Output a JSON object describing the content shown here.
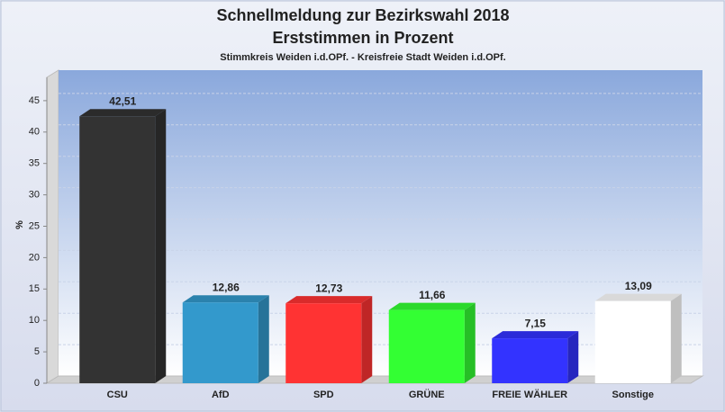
{
  "chart_data": {
    "type": "bar",
    "title": "Schnellmeldung zur Bezirkswahl 2018",
    "subtitle": "Erststimmen in Prozent",
    "note": "Stimmkreis Weiden i.d.OPf. - Kreisfreie Stadt Weiden i.d.OPf.",
    "y_label": "%",
    "categories": [
      "CSU",
      "AfD",
      "SPD",
      "GRÜNE",
      "FREIE WÄHLER",
      "Sonstige"
    ],
    "values": [
      42.51,
      12.86,
      12.73,
      11.66,
      7.15,
      13.09
    ],
    "value_labels": [
      "42,51",
      "12,86",
      "12,73",
      "11,66",
      "7,15",
      "13,09"
    ],
    "colors": [
      "#333333",
      "#3399cc",
      "#ff3333",
      "#33ff33",
      "#3333ff",
      "#ffffff"
    ],
    "ylim": [
      0,
      50
    ],
    "yticks": [
      0,
      5,
      10,
      15,
      20,
      25,
      30,
      35,
      40,
      45
    ],
    "grid": true
  }
}
